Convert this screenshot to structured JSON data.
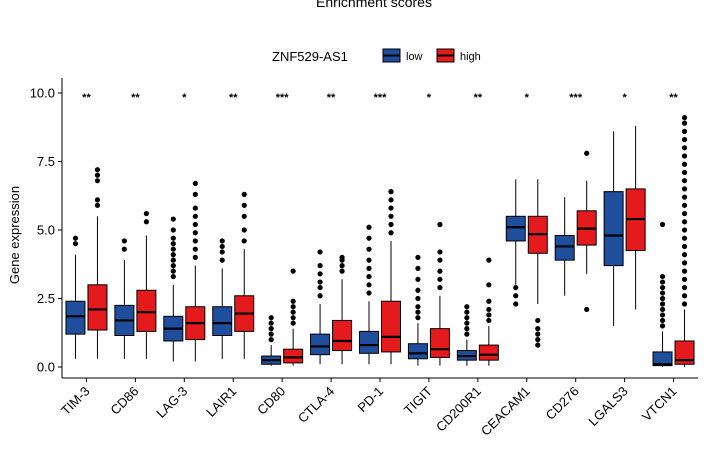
{
  "chart_data": {
    "type": "boxplot",
    "title": "Enrichment scores",
    "ylabel": "Gene expression",
    "xlabel": "",
    "ylim": [
      -0.3,
      10.0
    ],
    "yticks": [
      "0.0",
      "2.5",
      "5.0",
      "7.5",
      "10.0"
    ],
    "grid": false,
    "legend": {
      "title": "ZNF529-AS1",
      "position": "top",
      "entries": [
        {
          "label": "low",
          "color": "#1f4e9c"
        },
        {
          "label": "high",
          "color": "#e41a1c"
        }
      ]
    },
    "categories": [
      "TIM-3",
      "CD86",
      "LAG-3",
      "LAIR1",
      "CD80",
      "CTLA-4",
      "PD-1",
      "TIGIT",
      "CD200R1",
      "CEACAM1",
      "CD276",
      "LGALS3",
      "VTCN1"
    ],
    "significance": [
      "**",
      "**",
      "*",
      "**",
      "***",
      "**",
      "***",
      "*",
      "**",
      "*",
      "***",
      "*",
      "**"
    ],
    "series": [
      {
        "name": "low",
        "color": "#1f4e9c",
        "boxes": [
          {
            "min": 0.3,
            "q1": 1.2,
            "median": 1.85,
            "q3": 2.4,
            "max": 4.1,
            "outliers": [
              4.5,
              4.7
            ]
          },
          {
            "min": 0.3,
            "q1": 1.15,
            "median": 1.7,
            "q3": 2.25,
            "max": 3.9,
            "outliers": [
              4.3,
              4.6
            ]
          },
          {
            "min": 0.2,
            "q1": 0.95,
            "median": 1.4,
            "q3": 1.85,
            "max": 3.0,
            "outliers": [
              3.3,
              3.5,
              3.7,
              3.9,
              4.1,
              4.3,
              4.5,
              4.7,
              5.0,
              5.4
            ]
          },
          {
            "min": 0.3,
            "q1": 1.15,
            "median": 1.6,
            "q3": 2.2,
            "max": 3.6,
            "outliers": [
              3.9,
              4.2,
              4.4,
              4.6
            ]
          },
          {
            "min": 0.05,
            "q1": 0.1,
            "median": 0.25,
            "q3": 0.4,
            "max": 0.8,
            "outliers": [
              1.0,
              1.2,
              1.4,
              1.6,
              1.8
            ]
          },
          {
            "min": 0.1,
            "q1": 0.45,
            "median": 0.75,
            "q3": 1.2,
            "max": 2.3,
            "outliers": [
              2.6,
              2.9,
              3.1,
              3.4,
              3.7,
              4.2
            ]
          },
          {
            "min": 0.1,
            "q1": 0.5,
            "median": 0.8,
            "q3": 1.3,
            "max": 2.4,
            "outliers": [
              2.7,
              3.0,
              3.3,
              3.6,
              3.9,
              4.3,
              4.7,
              5.1
            ]
          },
          {
            "min": 0.05,
            "q1": 0.3,
            "median": 0.5,
            "q3": 0.85,
            "max": 1.6,
            "outliers": [
              1.8,
              2.0,
              2.2,
              2.5,
              2.8,
              3.2,
              3.6,
              4.0
            ]
          },
          {
            "min": 0.05,
            "q1": 0.25,
            "median": 0.4,
            "q3": 0.6,
            "max": 1.0,
            "outliers": [
              1.2,
              1.4,
              1.6,
              1.8,
              2.0,
              2.2
            ]
          },
          {
            "min": 3.0,
            "q1": 4.6,
            "median": 5.1,
            "q3": 5.5,
            "max": 6.85,
            "outliers": [
              2.9,
              2.6,
              2.3
            ]
          },
          {
            "min": 2.6,
            "q1": 3.9,
            "median": 4.4,
            "q3": 4.8,
            "max": 6.2,
            "outliers": []
          },
          {
            "min": 1.5,
            "q1": 3.7,
            "median": 4.8,
            "q3": 6.4,
            "max": 8.6,
            "outliers": []
          },
          {
            "min": 0.0,
            "q1": 0.05,
            "median": 0.1,
            "q3": 0.55,
            "max": 1.3,
            "outliers": [
              1.5,
              1.7,
              1.9,
              2.1,
              2.3,
              2.5,
              2.7,
              2.9,
              3.1,
              3.3,
              5.2
            ]
          }
        ]
      },
      {
        "name": "high",
        "color": "#e41a1c",
        "boxes": [
          {
            "min": 0.3,
            "q1": 1.35,
            "median": 2.1,
            "q3": 3.0,
            "max": 5.5,
            "outliers": [
              5.9,
              6.1,
              6.8,
              7.0,
              7.2
            ]
          },
          {
            "min": 0.3,
            "q1": 1.3,
            "median": 2.0,
            "q3": 2.8,
            "max": 4.8,
            "outliers": [
              5.3,
              5.6
            ]
          },
          {
            "min": 0.2,
            "q1": 1.0,
            "median": 1.6,
            "q3": 2.2,
            "max": 3.7,
            "outliers": [
              4.0,
              4.3,
              4.6,
              4.9,
              5.2,
              5.5,
              5.8,
              6.3,
              6.7
            ]
          },
          {
            "min": 0.3,
            "q1": 1.3,
            "median": 1.95,
            "q3": 2.6,
            "max": 4.3,
            "outliers": [
              4.6,
              5.0,
              5.5,
              5.9,
              6.3
            ]
          },
          {
            "min": 0.05,
            "q1": 0.15,
            "median": 0.35,
            "q3": 0.65,
            "max": 1.4,
            "outliers": [
              1.6,
              1.8,
              2.0,
              2.2,
              2.4,
              3.5
            ]
          },
          {
            "min": 0.1,
            "q1": 0.6,
            "median": 0.95,
            "q3": 1.7,
            "max": 3.2,
            "outliers": [
              3.5,
              3.7,
              3.9,
              4.0
            ]
          },
          {
            "min": 0.1,
            "q1": 0.55,
            "median": 1.1,
            "q3": 2.4,
            "max": 4.6,
            "outliers": [
              4.9,
              5.2,
              5.5,
              5.8,
              6.1,
              6.4
            ]
          },
          {
            "min": 0.05,
            "q1": 0.35,
            "median": 0.65,
            "q3": 1.4,
            "max": 2.6,
            "outliers": [
              2.9,
              3.2,
              3.5,
              3.9,
              4.2,
              5.2
            ]
          },
          {
            "min": 0.05,
            "q1": 0.25,
            "median": 0.45,
            "q3": 0.8,
            "max": 1.5,
            "outliers": [
              1.7,
              1.9,
              2.1,
              2.4,
              3.0,
              3.9
            ]
          },
          {
            "min": 2.3,
            "q1": 4.15,
            "median": 4.85,
            "q3": 5.5,
            "max": 6.85,
            "outliers": [
              1.7,
              1.4,
              1.2,
              1.0,
              0.8
            ]
          },
          {
            "min": 3.4,
            "q1": 4.45,
            "median": 5.05,
            "q3": 5.7,
            "max": 6.8,
            "outliers": [
              7.8,
              2.1
            ]
          },
          {
            "min": 2.1,
            "q1": 4.25,
            "median": 5.4,
            "q3": 6.5,
            "max": 8.8,
            "outliers": []
          },
          {
            "min": 0.0,
            "q1": 0.1,
            "median": 0.25,
            "q3": 0.95,
            "max": 2.1,
            "outliers": [
              2.3,
              2.6,
              2.9,
              3.2,
              3.5,
              3.8,
              4.1,
              4.4,
              4.7,
              5.0,
              5.3,
              5.6,
              5.9,
              6.2,
              6.5,
              6.8,
              7.1,
              7.4,
              7.7,
              8.0,
              8.3,
              8.6,
              8.9,
              9.1
            ]
          }
        ]
      }
    ]
  }
}
